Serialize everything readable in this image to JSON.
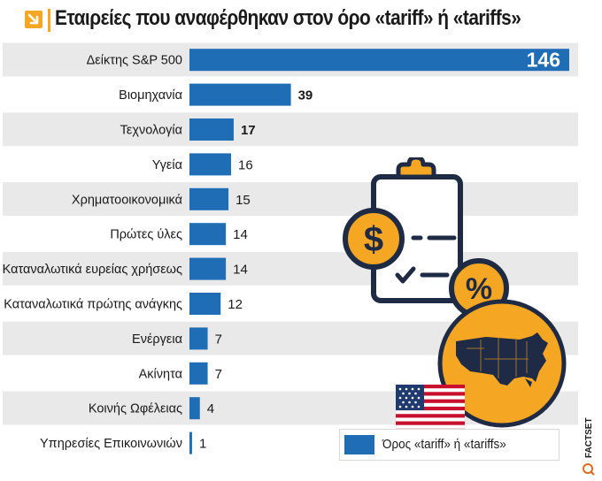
{
  "title": "Εταιρείες που αναφέρθηκαν στον όρο «tariff» ή «tariffs»",
  "legend_label": "Όρος «tariff» ή «tariffs»",
  "source": "FACTSET",
  "colors": {
    "bar": "#1f6db5",
    "accent": "#f5a623",
    "row_alt": "#e9e9e9",
    "bg": "#ffffff"
  },
  "icons": [
    "arrow-down-right-icon",
    "clipboard-icon",
    "dollar-coin-icon",
    "percent-coin-icon",
    "usa-map-icon",
    "usa-flag-icon",
    "source-logo-icon"
  ],
  "chart_data": {
    "type": "bar",
    "orientation": "horizontal",
    "categories": [
      "Δείκτης S&P 500",
      "Βιομηχανία",
      "Τεχνολογία",
      "Υγεία",
      "Χρηματοοικονομικά",
      "Πρώτες ύλες",
      "Καταναλωτικά ευρείας χρήσεως",
      "Καταναλωτικά πρώτης ανάγκης",
      "Ενέργεια",
      "Ακίνητα",
      "Κοινής Ωφέλειας",
      "Υπηρεσίες Επικοινωνιών"
    ],
    "values": [
      146,
      39,
      17,
      16,
      15,
      14,
      14,
      12,
      7,
      7,
      4,
      1
    ],
    "value_labels": [
      "146",
      "39",
      "17",
      "16",
      "15",
      "14",
      "14",
      "12",
      "7",
      "7",
      "4",
      "1"
    ],
    "bold_labels": [
      true,
      true,
      true,
      false,
      false,
      false,
      false,
      false,
      false,
      false,
      false,
      false
    ],
    "xlim": [
      0,
      146
    ],
    "xlabel": "",
    "ylabel": "",
    "grid": false,
    "legend_position": "bottom-right",
    "series": [
      {
        "name": "Όρος «tariff» ή «tariffs»",
        "values": [
          146,
          39,
          17,
          16,
          15,
          14,
          14,
          12,
          7,
          7,
          4,
          1
        ]
      }
    ]
  }
}
